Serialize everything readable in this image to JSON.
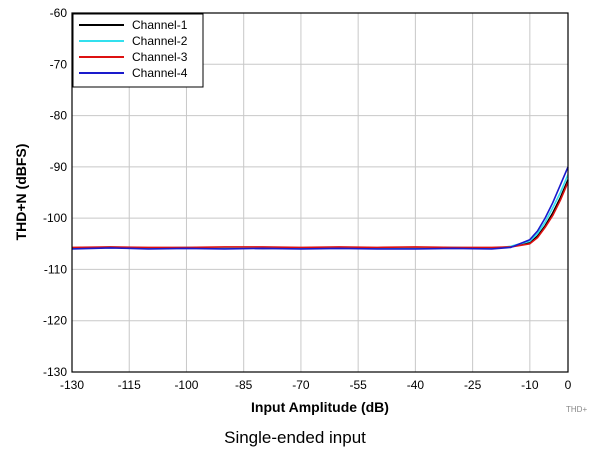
{
  "chart_data": {
    "type": "line",
    "xlabel": "Input Amplitude (dB)",
    "ylabel": "THD+N (dBFS)",
    "xlim": [
      -130,
      0
    ],
    "ylim": [
      -130,
      -60
    ],
    "xticks": [
      -130,
      -115,
      -100,
      -85,
      -70,
      -55,
      -40,
      -25,
      -10,
      0
    ],
    "yticks": [
      -60,
      -70,
      -80,
      -90,
      -100,
      -110,
      -120,
      -130
    ],
    "grid": true,
    "legend_position": "top-left",
    "series": [
      {
        "name": "Channel-1",
        "color": "#000000",
        "x": [
          -130,
          -120,
          -110,
          -100,
          -90,
          -80,
          -70,
          -60,
          -50,
          -40,
          -30,
          -20,
          -15,
          -10,
          -8,
          -6,
          -4,
          -2,
          0
        ],
        "y": [
          -105.8,
          -105.7,
          -105.8,
          -105.8,
          -105.7,
          -105.9,
          -105.8,
          -105.8,
          -105.8,
          -105.8,
          -105.8,
          -105.8,
          -105.6,
          -104.8,
          -103.5,
          -101.5,
          -99,
          -96,
          -92.5
        ]
      },
      {
        "name": "Channel-2",
        "color": "#33e0ee",
        "x": [
          -130,
          -120,
          -110,
          -100,
          -90,
          -80,
          -70,
          -60,
          -50,
          -40,
          -30,
          -20,
          -15,
          -10,
          -8,
          -6,
          -4,
          -2,
          0
        ],
        "y": [
          -105.9,
          -105.6,
          -105.9,
          -105.7,
          -105.8,
          -105.7,
          -105.9,
          -105.7,
          -105.9,
          -105.8,
          -105.7,
          -105.9,
          -105.5,
          -104.5,
          -103,
          -100.8,
          -98,
          -95,
          -91.5
        ]
      },
      {
        "name": "Channel-3",
        "color": "#dd1111",
        "x": [
          -130,
          -120,
          -110,
          -100,
          -90,
          -80,
          -70,
          -60,
          -50,
          -40,
          -30,
          -20,
          -15,
          -10,
          -8,
          -6,
          -4,
          -2,
          0
        ],
        "y": [
          -105.7,
          -105.6,
          -105.7,
          -105.7,
          -105.6,
          -105.6,
          -105.7,
          -105.6,
          -105.7,
          -105.6,
          -105.7,
          -105.7,
          -105.6,
          -105,
          -103.8,
          -101.8,
          -99.5,
          -96.5,
          -93
        ]
      },
      {
        "name": "Channel-4",
        "color": "#1a1acc",
        "x": [
          -130,
          -120,
          -110,
          -100,
          -90,
          -80,
          -70,
          -60,
          -50,
          -40,
          -30,
          -20,
          -15,
          -10,
          -8,
          -6,
          -4,
          -2,
          0
        ],
        "y": [
          -106,
          -105.8,
          -106,
          -105.9,
          -106,
          -105.9,
          -106,
          -105.9,
          -106,
          -106,
          -105.9,
          -106,
          -105.7,
          -104.2,
          -102.5,
          -100,
          -97,
          -93.5,
          -90
        ]
      }
    ]
  },
  "figure_code": "THD+",
  "caption": "Single-ended input"
}
